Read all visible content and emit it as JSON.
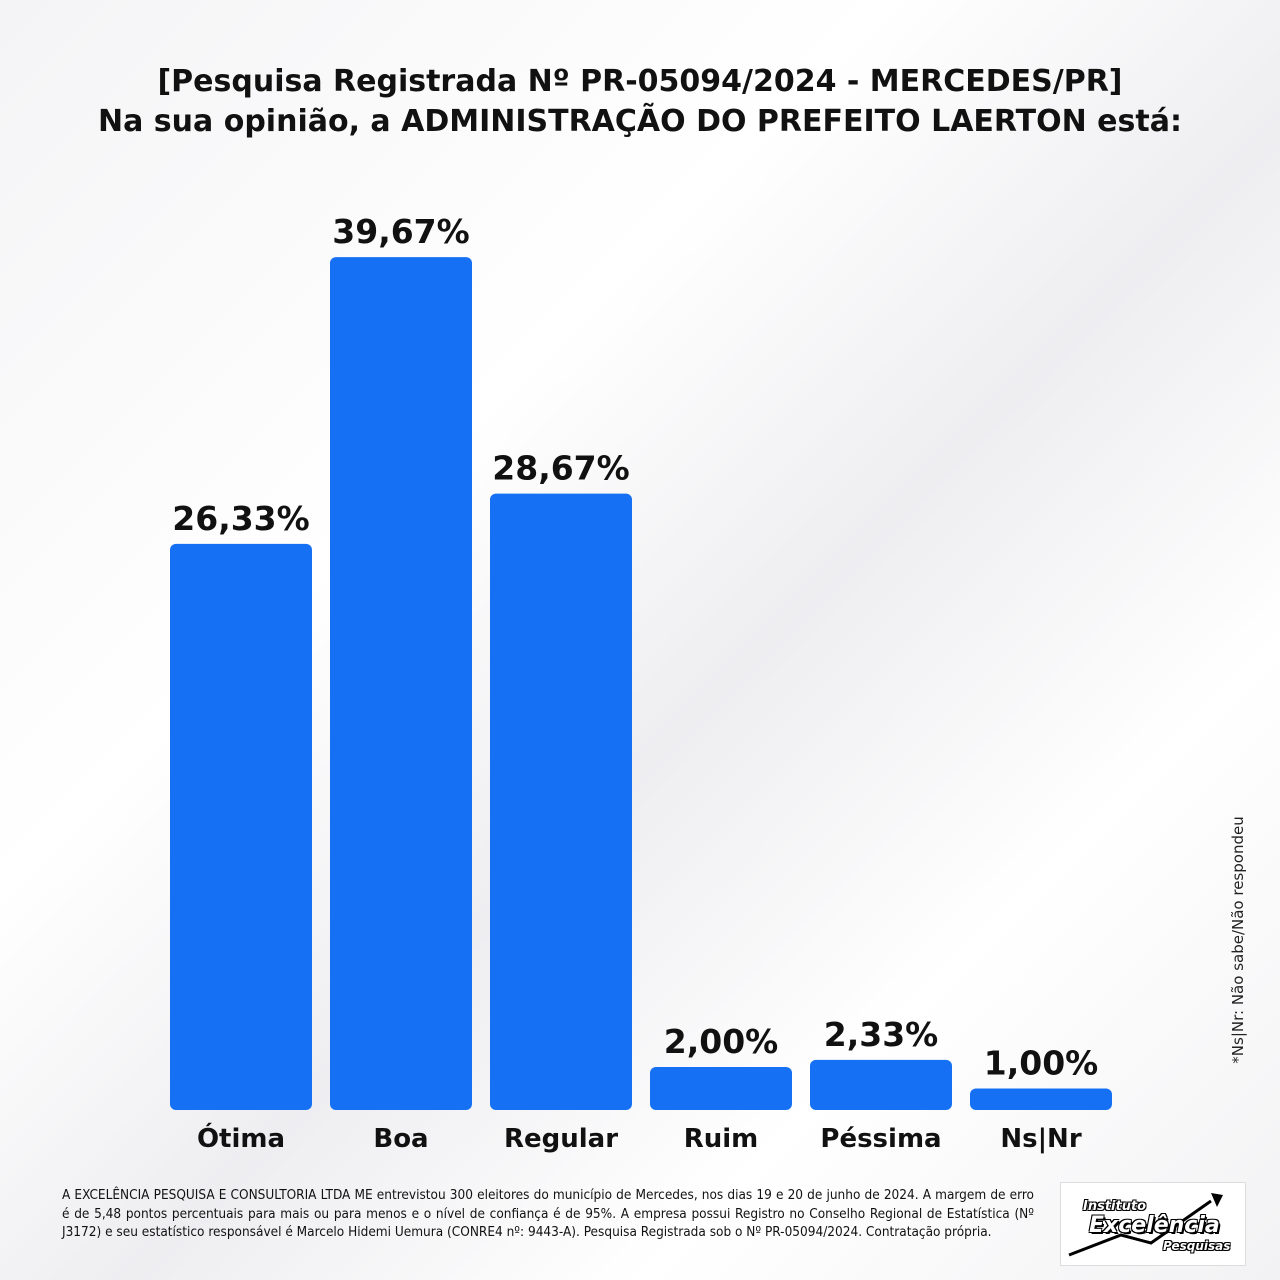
{
  "title_line1": "[Pesquisa Registrada Nº PR-05094/2024 - MERCEDES/PR]",
  "title_line2": "Na sua opinião, a ADMINISTRAÇÃO DO PREFEITO LAERTON está:",
  "side_note": "*Ns|Nr: Não sabe/Não respondeu",
  "footer_text": "A EXCELÊNCIA PESQUISA E CONSULTORIA LTDA ME entrevistou 300 eleitores do município de Mercedes, nos dias 19 e 20 de junho de 2024. A margem de erro é de 5,48 pontos percentuais para mais ou para menos e o nível de confiança é de 95%. A empresa possui Registro no Conselho Regional de Estatística (Nº J3172) e seu estatístico responsável é Marcelo Hidemi Uemura (CONRE4 nº: 9443-A). Pesquisa Registrada sob o Nº PR-05094/2024. Contratação própria.",
  "logo": {
    "line1": "Instituto",
    "line2": "Excelência",
    "line3": "Pesquisas"
  },
  "colors": {
    "bar": "#1670f4",
    "text": "#111111"
  },
  "chart_data": {
    "type": "bar",
    "title": "Na sua opinião, a ADMINISTRAÇÃO DO PREFEITO LAERTON está:",
    "categories": [
      "Ótima",
      "Boa",
      "Regular",
      "Ruim",
      "Péssima",
      "Ns|Nr"
    ],
    "values": [
      26.33,
      39.67,
      28.67,
      2.0,
      2.33,
      1.0
    ],
    "value_labels": [
      "26,33%",
      "39,67%",
      "28,67%",
      "2,00%",
      "2,33%",
      "1,00%"
    ],
    "xlabel": "",
    "ylabel": "",
    "ylim": [
      0,
      40
    ],
    "grid": false,
    "legend": "none"
  }
}
